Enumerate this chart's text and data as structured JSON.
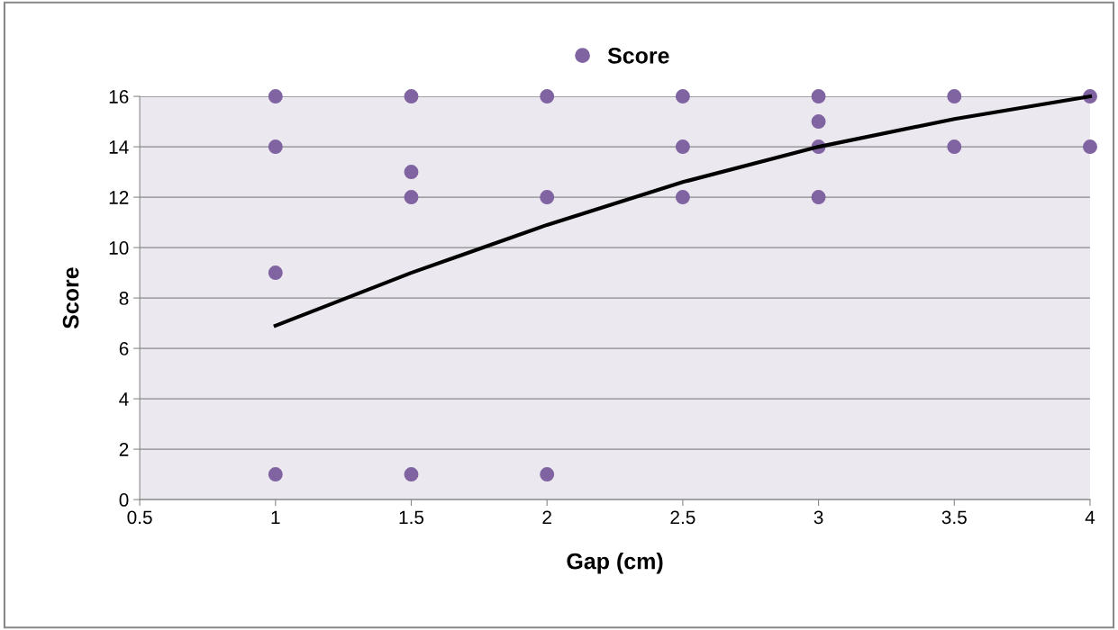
{
  "chart_data": {
    "type": "scatter",
    "xlabel": "Gap (cm)",
    "ylabel": "Score",
    "xlim": [
      0.5,
      4
    ],
    "xticks": [
      0.5,
      1,
      1.5,
      2,
      2.5,
      3,
      3.5,
      4
    ],
    "ylim": [
      0,
      16
    ],
    "yticks": [
      0,
      2,
      4,
      6,
      8,
      10,
      12,
      14,
      16
    ],
    "grid": "y",
    "legend": "top",
    "marker": "circle",
    "series": [
      {
        "name": "Score",
        "color": "#8064a2",
        "x": [
          1,
          1,
          1,
          1,
          1.5,
          1.5,
          1.5,
          1.5,
          2,
          2,
          2,
          2.5,
          2.5,
          2.5,
          3,
          3,
          3,
          3,
          3.5,
          3.5,
          4,
          4
        ],
        "values": [
          16,
          14,
          9,
          1,
          16,
          13,
          12,
          1,
          16,
          12,
          1,
          16,
          14,
          12,
          16,
          15,
          14,
          12,
          16,
          14,
          16,
          14
        ]
      },
      {
        "type": "line",
        "color": "#000000",
        "line_style": "solid",
        "marker": "none",
        "x": [
          1,
          1.5,
          2,
          2.5,
          3,
          3.5,
          4
        ],
        "values": [
          6.9,
          9.0,
          10.9,
          12.6,
          14.0,
          15.1,
          16.0
        ]
      }
    ]
  }
}
